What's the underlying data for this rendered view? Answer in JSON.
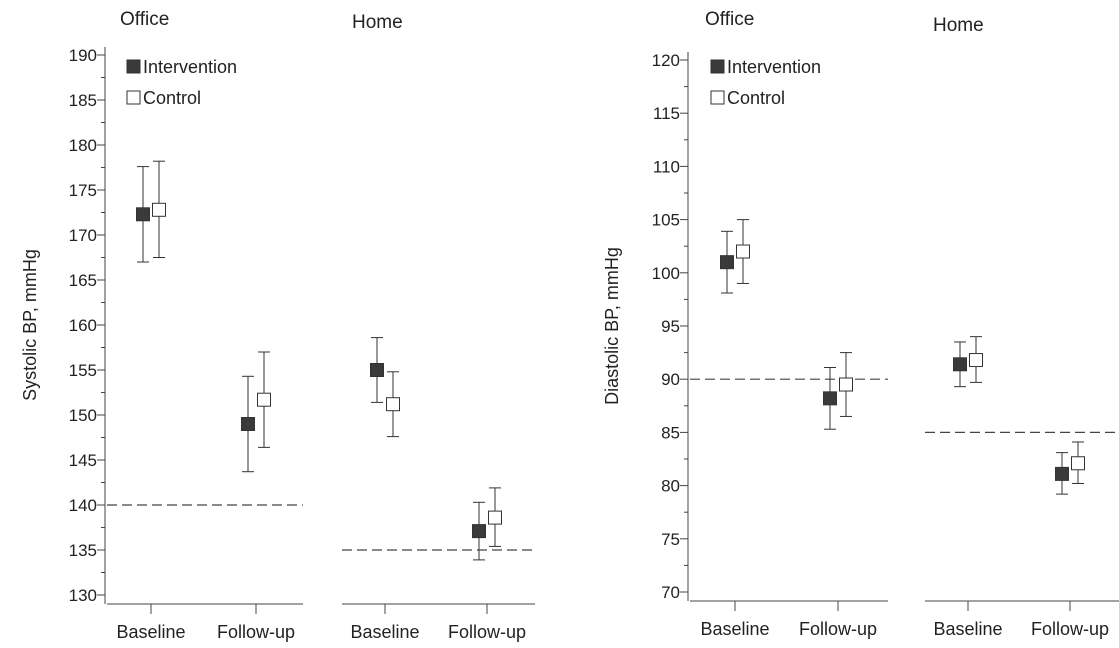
{
  "chart_data": [
    {
      "type": "scatter",
      "ylabel": "Systolic BP, mmHg",
      "ylim": [
        130,
        190
      ],
      "yticks": [
        130,
        135,
        140,
        145,
        150,
        155,
        160,
        165,
        170,
        175,
        180,
        185,
        190
      ],
      "categories": [
        "Baseline",
        "Follow-up"
      ],
      "legend": [
        "Intervention",
        "Control"
      ],
      "panels": [
        {
          "title": "Office",
          "reference_line": 140,
          "series": [
            {
              "name": "Intervention",
              "mean": [
                172.3,
                149
              ],
              "lower": [
                167,
                143.7
              ],
              "upper": [
                177.6,
                154.3
              ]
            },
            {
              "name": "Control",
              "mean": [
                172.8,
                151.7
              ],
              "lower": [
                167.5,
                146.4
              ],
              "upper": [
                178.2,
                157
              ]
            }
          ]
        },
        {
          "title": "Home",
          "reference_line": 135,
          "series": [
            {
              "name": "Intervention",
              "mean": [
                155,
                137.1
              ],
              "lower": [
                151.4,
                133.9
              ],
              "upper": [
                158.6,
                140.3
              ]
            },
            {
              "name": "Control",
              "mean": [
                151.2,
                138.6
              ],
              "lower": [
                147.6,
                135.4
              ],
              "upper": [
                154.8,
                141.9
              ]
            }
          ]
        }
      ]
    },
    {
      "type": "scatter",
      "ylabel": "Diastolic BP, mmHg",
      "ylim": [
        70,
        120
      ],
      "yticks": [
        70,
        75,
        80,
        85,
        90,
        95,
        100,
        105,
        110,
        115,
        120
      ],
      "categories": [
        "Baseline",
        "Follow-up"
      ],
      "legend": [
        "Intervention",
        "Control"
      ],
      "panels": [
        {
          "title": "Office",
          "reference_line": 90,
          "series": [
            {
              "name": "Intervention",
              "mean": [
                101,
                88.2
              ],
              "lower": [
                98.1,
                85.3
              ],
              "upper": [
                103.9,
                91.1
              ]
            },
            {
              "name": "Control",
              "mean": [
                102,
                89.5
              ],
              "lower": [
                99,
                86.5
              ],
              "upper": [
                105,
                92.5
              ]
            }
          ]
        },
        {
          "title": "Home",
          "reference_line": 85,
          "series": [
            {
              "name": "Intervention",
              "mean": [
                91.4,
                81.1
              ],
              "lower": [
                89.3,
                79.2
              ],
              "upper": [
                93.5,
                83.1
              ]
            },
            {
              "name": "Control",
              "mean": [
                91.8,
                82.1
              ],
              "lower": [
                89.7,
                80.2
              ],
              "upper": [
                94,
                84.1
              ]
            }
          ]
        }
      ]
    }
  ],
  "colors": {
    "intervention": "#3a3a3a",
    "control": "#ffffff",
    "stroke": "#333333",
    "axis": "#444444"
  }
}
